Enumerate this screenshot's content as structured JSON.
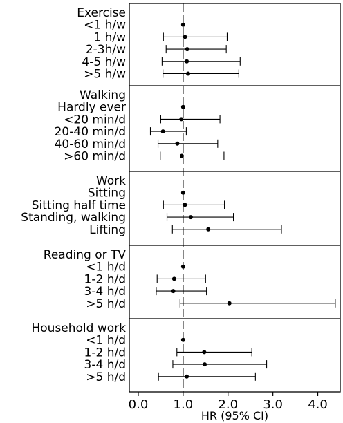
{
  "chart_data": {
    "type": "forest",
    "xlabel": "HR (95% CI)",
    "xlim": [
      -0.2,
      4.5
    ],
    "xticks": [
      0.0,
      1.0,
      2.0,
      3.0,
      4.0
    ],
    "xtick_labels": [
      "0.0",
      "1.0",
      "2.0",
      "3.0",
      "4.0"
    ],
    "reference_line": 1.0,
    "groups": [
      {
        "title": "Exercise",
        "rows": [
          {
            "label": "<1 h/w",
            "hr": 1.0,
            "lo": 1.0,
            "hi": 1.0
          },
          {
            "label": "1 h/w",
            "hr": 1.04,
            "lo": 0.56,
            "hi": 1.98
          },
          {
            "label": "2-3h/w",
            "hr": 1.09,
            "lo": 0.62,
            "hi": 1.96
          },
          {
            "label": "4-5 h/w",
            "hr": 1.08,
            "lo": 0.53,
            "hi": 2.27
          },
          {
            "label": ">5 h/w",
            "hr": 1.11,
            "lo": 0.55,
            "hi": 2.24
          }
        ]
      },
      {
        "title": "Walking",
        "rows": [
          {
            "label": "Hardly ever",
            "hr": 1.0,
            "lo": 1.0,
            "hi": 1.0
          },
          {
            "label": "<20 min/d",
            "hr": 0.96,
            "lo": 0.5,
            "hi": 1.82
          },
          {
            "label": "20-40 min/d",
            "hr": 0.55,
            "lo": 0.27,
            "hi": 1.07
          },
          {
            "label": "40-60 min/d",
            "hr": 0.87,
            "lo": 0.44,
            "hi": 1.77
          },
          {
            "label": ">60 min/d",
            "hr": 0.97,
            "lo": 0.49,
            "hi": 1.91
          }
        ]
      },
      {
        "title": "Work",
        "rows": [
          {
            "label": "Sitting",
            "hr": 1.0,
            "lo": 1.0,
            "hi": 1.0
          },
          {
            "label": "Sitting half time",
            "hr": 1.04,
            "lo": 0.56,
            "hi": 1.92
          },
          {
            "label": "Standing, walking",
            "hr": 1.17,
            "lo": 0.64,
            "hi": 2.12
          },
          {
            "label": "Lifting",
            "hr": 1.56,
            "lo": 0.76,
            "hi": 3.19
          }
        ]
      },
      {
        "title": "Reading or TV",
        "rows": [
          {
            "label": "<1 h/d",
            "hr": 1.0,
            "lo": 1.0,
            "hi": 1.0
          },
          {
            "label": "1-2 h/d",
            "hr": 0.8,
            "lo": 0.42,
            "hi": 1.5
          },
          {
            "label": "3-4 h/d",
            "hr": 0.78,
            "lo": 0.4,
            "hi": 1.52
          },
          {
            "label": ">5 h/d",
            "hr": 2.03,
            "lo": 0.93,
            "hi": 4.39
          }
        ]
      },
      {
        "title": "Household work",
        "rows": [
          {
            "label": "<1 h/d",
            "hr": 1.0,
            "lo": 1.0,
            "hi": 1.0
          },
          {
            "label": "1-2 h/d",
            "hr": 1.47,
            "lo": 0.86,
            "hi": 2.53
          },
          {
            "label": "3-4 h/d",
            "hr": 1.48,
            "lo": 0.77,
            "hi": 2.86
          },
          {
            "label": ">5 h/d",
            "hr": 1.08,
            "lo": 0.45,
            "hi": 2.61
          }
        ]
      }
    ]
  }
}
